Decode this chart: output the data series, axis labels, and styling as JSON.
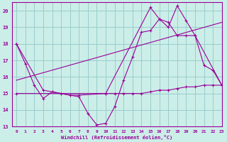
{
  "background_color": "#cceee8",
  "grid_color": "#99cccc",
  "line_color": "#990099",
  "xlim": [
    -0.5,
    23
  ],
  "ylim": [
    13,
    20.5
  ],
  "yticks": [
    13,
    14,
    15,
    16,
    17,
    18,
    19,
    20
  ],
  "xticks": [
    0,
    1,
    2,
    3,
    4,
    5,
    6,
    7,
    8,
    9,
    10,
    11,
    12,
    13,
    14,
    15,
    16,
    17,
    18,
    19,
    20,
    21,
    22,
    23
  ],
  "xlabel": "Windchill (Refroidissement éolien,°C)",
  "line1_x": [
    0,
    1,
    2,
    3,
    4,
    5,
    6,
    7,
    8,
    9,
    10,
    11,
    12,
    13,
    14,
    15,
    16,
    17,
    18,
    19,
    20,
    21,
    22,
    23
  ],
  "line1_y": [
    18.0,
    16.8,
    15.5,
    14.7,
    15.1,
    15.0,
    14.9,
    14.8,
    13.8,
    13.1,
    13.2,
    14.2,
    15.8,
    17.2,
    18.7,
    18.8,
    19.5,
    19.0,
    20.3,
    19.4,
    18.5,
    16.7,
    16.4,
    15.5
  ],
  "line2_x": [
    0,
    3,
    4,
    5,
    6,
    7,
    10,
    15,
    16,
    17,
    18,
    19,
    20,
    23
  ],
  "line2_y": [
    18.0,
    15.2,
    15.1,
    15.0,
    14.9,
    14.9,
    15.0,
    20.2,
    19.5,
    19.3,
    18.5,
    18.5,
    18.5,
    15.5
  ],
  "line3_x": [
    0,
    10,
    11,
    12,
    13,
    14,
    15,
    16,
    17,
    18,
    19,
    20,
    21,
    22,
    23
  ],
  "line3_y": [
    15.0,
    15.0,
    15.0,
    15.0,
    15.0,
    15.0,
    15.1,
    15.2,
    15.2,
    15.3,
    15.4,
    15.4,
    15.5,
    15.5,
    15.5
  ],
  "line4_x": [
    0,
    23
  ],
  "line4_y": [
    15.8,
    19.3
  ]
}
